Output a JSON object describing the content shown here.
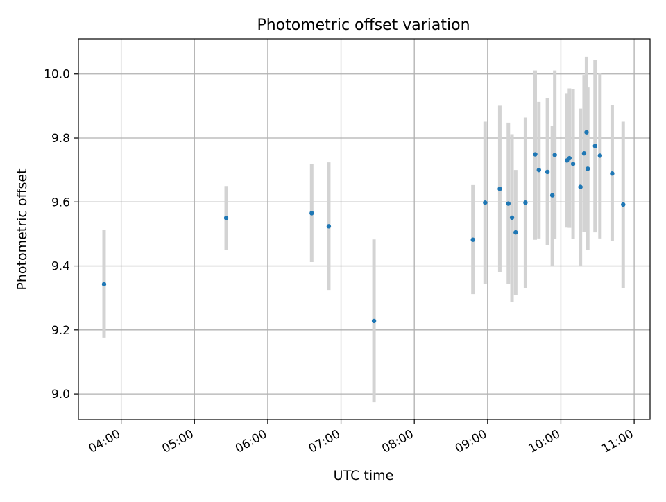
{
  "chart_data": {
    "type": "scatter",
    "title": "Photometric offset variation",
    "xlabel": "UTC time",
    "ylabel": "Photometric offset",
    "xlim": [
      "03:25",
      "11:13"
    ],
    "ylim": [
      8.92,
      10.11
    ],
    "xticks": [
      "04:00",
      "05:00",
      "06:00",
      "07:00",
      "08:00",
      "09:00",
      "10:00",
      "11:00"
    ],
    "yticks": [
      "9.0",
      "9.2",
      "9.4",
      "9.6",
      "9.8",
      "10.0"
    ],
    "grid": true,
    "legend": "none",
    "marker_color": "#1f77b4",
    "errorbar_color": "#d3d3d3",
    "points": [
      {
        "t": "03:46",
        "y": 9.343,
        "lo": 9.176,
        "hi": 9.512
      },
      {
        "t": "05:26",
        "y": 9.55,
        "lo": 9.45,
        "hi": 9.65
      },
      {
        "t": "06:36",
        "y": 9.565,
        "lo": 9.412,
        "hi": 9.718
      },
      {
        "t": "06:50",
        "y": 9.524,
        "lo": 9.325,
        "hi": 9.724
      },
      {
        "t": "07:27",
        "y": 9.228,
        "lo": 8.974,
        "hi": 9.483
      },
      {
        "t": "08:48",
        "y": 9.482,
        "lo": 9.312,
        "hi": 9.653
      },
      {
        "t": "08:58",
        "y": 9.598,
        "lo": 9.343,
        "hi": 9.851
      },
      {
        "t": "09:10",
        "y": 9.641,
        "lo": 9.38,
        "hi": 9.901
      },
      {
        "t": "09:17",
        "y": 9.595,
        "lo": 9.343,
        "hi": 9.848
      },
      {
        "t": "09:20",
        "y": 9.551,
        "lo": 9.287,
        "hi": 9.812
      },
      {
        "t": "09:23",
        "y": 9.505,
        "lo": 9.308,
        "hi": 9.7
      },
      {
        "t": "09:31",
        "y": 9.598,
        "lo": 9.331,
        "hi": 9.864
      },
      {
        "t": "09:39",
        "y": 9.749,
        "lo": 9.482,
        "hi": 10.011
      },
      {
        "t": "09:42",
        "y": 9.7,
        "lo": 9.486,
        "hi": 9.913
      },
      {
        "t": "09:49",
        "y": 9.694,
        "lo": 9.466,
        "hi": 9.924
      },
      {
        "t": "09:53",
        "y": 9.621,
        "lo": 9.398,
        "hi": 9.839
      },
      {
        "t": "09:55",
        "y": 9.747,
        "lo": 9.484,
        "hi": 10.011
      },
      {
        "t": "10:05",
        "y": 9.73,
        "lo": 9.52,
        "hi": 9.94
      },
      {
        "t": "10:07",
        "y": 9.737,
        "lo": 9.519,
        "hi": 9.955
      },
      {
        "t": "10:10",
        "y": 9.719,
        "lo": 9.484,
        "hi": 9.954
      },
      {
        "t": "10:16",
        "y": 9.647,
        "lo": 9.399,
        "hi": 9.892
      },
      {
        "t": "10:19",
        "y": 9.752,
        "lo": 9.507,
        "hi": 9.997
      },
      {
        "t": "10:21",
        "y": 9.818,
        "lo": 9.579,
        "hi": 10.054
      },
      {
        "t": "10:22",
        "y": 9.704,
        "lo": 9.45,
        "hi": 9.958
      },
      {
        "t": "10:28",
        "y": 9.775,
        "lo": 9.505,
        "hi": 10.045
      },
      {
        "t": "10:32",
        "y": 9.745,
        "lo": 9.486,
        "hi": 10.003
      },
      {
        "t": "10:42",
        "y": 9.689,
        "lo": 9.477,
        "hi": 9.902
      },
      {
        "t": "10:51",
        "y": 9.592,
        "lo": 9.331,
        "hi": 9.851
      }
    ]
  }
}
